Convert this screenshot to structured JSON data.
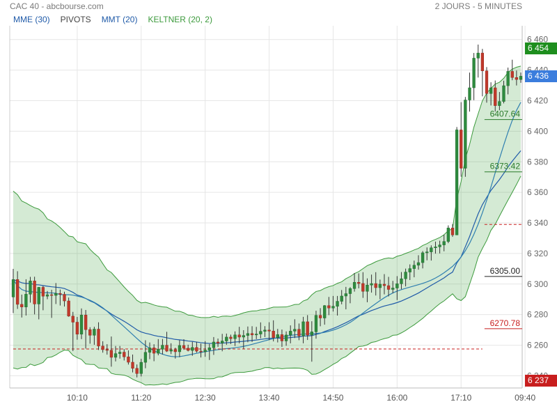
{
  "header": {
    "title": "CAC 40 - abcbourse.com",
    "period": "2 JOURS - 5 MINUTES"
  },
  "legend": [
    {
      "label": "MME (30)",
      "color": "#1f5aa8"
    },
    {
      "label": "PIVOTS",
      "color": "#444444"
    },
    {
      "label": "MMT (20)",
      "color": "#1f5aa8"
    },
    {
      "label": "KELTNER (20, 2)",
      "color": "#3c9a3c"
    }
  ],
  "price_badges": [
    {
      "value": "6 454",
      "price": 6454,
      "color": "#1e8e1e"
    },
    {
      "value": "6 436",
      "price": 6436,
      "color": "#3b7ddd"
    },
    {
      "value": "6 237",
      "price": 6237,
      "color": "#c81e1e"
    }
  ],
  "chart_data": {
    "type": "candlestick",
    "ylim": [
      6232,
      6469
    ],
    "yticks": [
      "6 240",
      "6 260",
      "6 280",
      "6 300",
      "6 320",
      "6 340",
      "6 360",
      "6 380",
      "6 400",
      "6 420",
      "6 440",
      "6 460"
    ],
    "ytick_values": [
      6240,
      6260,
      6280,
      6300,
      6320,
      6340,
      6360,
      6380,
      6400,
      6420,
      6440,
      6460
    ],
    "xticks": [
      "10:10",
      "11:20",
      "12:30",
      "13:40",
      "14:50",
      "16:00",
      "17:10",
      "09:40"
    ],
    "xtick_bars": [
      15,
      30,
      45,
      60,
      75,
      90,
      105,
      120
    ],
    "session_break_bar": 110,
    "pivot_levels": [
      {
        "label": "6407.64",
        "value": 6407.64,
        "color": "#2a7a2a",
        "style": "solid",
        "from_bar": 110
      },
      {
        "label": "6373.42",
        "value": 6373.42,
        "color": "#2a7a2a",
        "style": "solid",
        "from_bar": 110
      },
      {
        "label": "",
        "value": 6339,
        "color": "#c81e1e",
        "style": "dashed",
        "from_bar": 110
      },
      {
        "label": "6305.00",
        "value": 6305.0,
        "color": "#222222",
        "style": "solid",
        "from_bar": 110
      },
      {
        "label": "6270.78",
        "value": 6270.78,
        "color": "#c81e1e",
        "style": "solid",
        "from_bar": 110
      },
      {
        "label": "",
        "value": 6257.5,
        "color": "#c81e1e",
        "style": "dashed",
        "from_bar": 0,
        "to_bar": 110
      }
    ],
    "ohlc": [
      [
        6291.53,
        6309.95,
        6281.02,
        6302.97
      ],
      [
        6302.97,
        6308.39,
        6283.73,
        6286.73
      ],
      [
        6286.73,
        6293.09,
        6278.11,
        6285.0
      ],
      [
        6285.0,
        6303.13,
        6279.42,
        6293.37
      ],
      [
        6293.37,
        6304.7,
        6287.86,
        6302.04
      ],
      [
        6302.04,
        6304.79,
        6280.16,
        6286.95
      ],
      [
        6286.95,
        6298.1,
        6276.91,
        6297.88
      ],
      [
        6297.88,
        6298.91,
        6282.86,
        6292.07
      ],
      [
        6292.07,
        6295.45,
        6290.09,
        6293.02
      ],
      [
        6293.02,
        6296.25,
        6277.87,
        6292.6
      ],
      [
        6292.6,
        6300.66,
        6286.93,
        6293.88
      ],
      [
        6293.88,
        6296.42,
        6285.96,
        6293.28
      ],
      [
        6293.28,
        6295.0,
        6285.29,
        6288.96
      ],
      [
        6288.96,
        6291.15,
        6278.61,
        6279.02
      ],
      [
        6279.02,
        6281.79,
        6256.14,
        6275.06
      ],
      [
        6275.06,
        6278.5,
        6263.6,
        6267.2
      ],
      [
        6267.2,
        6284.04,
        6263.97,
        6279.73
      ],
      [
        6279.73,
        6283.04,
        6257.78,
        6270.2
      ],
      [
        6270.2,
        6271.76,
        6260.96,
        6266.49
      ],
      [
        6266.49,
        6272.07,
        6260.27,
        6270.52
      ],
      [
        6270.52,
        6274.99,
        6256.87,
        6259.41
      ],
      [
        6259.41,
        6262.58,
        6255.12,
        6257.09
      ],
      [
        6257.09,
        6260.64,
        6253.82,
        6256.67
      ],
      [
        6256.67,
        6265.68,
        6245.95,
        6252.07
      ],
      [
        6252.07,
        6259.47,
        6249.39,
        6254.5
      ],
      [
        6254.5,
        6259.47,
        6251.21,
        6255.45
      ],
      [
        6255.45,
        6257.47,
        6250.0,
        6252.38
      ],
      [
        6252.38,
        6256.59,
        6247.33,
        6248.86
      ],
      [
        6248.86,
        6253.88,
        6242.2,
        6244.85
      ],
      [
        6244.85,
        6247.39,
        6238.92,
        6241.45
      ],
      [
        6241.45,
        6251.08,
        6239.55,
        6248.8
      ],
      [
        6248.8,
        6263.22,
        6244.91,
        6255.32
      ],
      [
        6255.32,
        6261.78,
        6250.85,
        6258.25
      ],
      [
        6258.25,
        6260.61,
        6249.52,
        6254.74
      ],
      [
        6254.74,
        6263.97,
        6253.38,
        6257.39
      ],
      [
        6257.39,
        6264.08,
        6253.89,
        6259.98
      ],
      [
        6259.98,
        6268.76,
        6255.55,
        6256.12
      ],
      [
        6256.12,
        6261.25,
        6254.2,
        6257.03
      ],
      [
        6257.03,
        6258.32,
        6251.24,
        6255.72
      ],
      [
        6255.72,
        6263.25,
        6252.15,
        6259.8
      ],
      [
        6259.8,
        6263.91,
        6256.99,
        6258.04
      ],
      [
        6258.04,
        6260.31,
        6255.94,
        6256.57
      ],
      [
        6256.57,
        6262.21,
        6253.08,
        6258.54
      ],
      [
        6258.54,
        6262.23,
        6255.13,
        6256.11
      ],
      [
        6256.11,
        6261.06,
        6251.96,
        6255.73
      ],
      [
        6255.73,
        6262.66,
        6252.41,
        6256.79
      ],
      [
        6256.79,
        6260.83,
        6250.33,
        6258.33
      ],
      [
        6258.33,
        6265.32,
        6253.66,
        6262.09
      ],
      [
        6262.09,
        6264.36,
        6258.88,
        6261.38
      ],
      [
        6261.38,
        6267.42,
        6256.02,
        6262.75
      ],
      [
        6262.75,
        6267.59,
        6260.22,
        6265.31
      ],
      [
        6265.31,
        6266.91,
        6260.76,
        6264.28
      ],
      [
        6264.28,
        6269.04,
        6259.48,
        6266.74
      ],
      [
        6266.74,
        6272.02,
        6261.19,
        6265.3
      ],
      [
        6265.3,
        6269.84,
        6257.73,
        6266.37
      ],
      [
        6266.37,
        6272.22,
        6261.93,
        6267.64
      ],
      [
        6267.64,
        6272.41,
        6262.16,
        6266.72
      ],
      [
        6266.72,
        6271.99,
        6263.98,
        6267.29
      ],
      [
        6267.29,
        6274.92,
        6264.51,
        6269.07
      ],
      [
        6269.07,
        6272.46,
        6265.34,
        6269.91
      ],
      [
        6269.91,
        6275.02,
        6263.37,
        6269.24
      ],
      [
        6269.24,
        6276.27,
        6262.48,
        6264.92
      ],
      [
        6264.92,
        6270.66,
        6261.82,
        6266.93
      ],
      [
        6266.93,
        6270.24,
        6258.86,
        6262.79
      ],
      [
        6262.79,
        6269.03,
        6259.62,
        6266.67
      ],
      [
        6266.67,
        6272.96,
        6261.21,
        6269.2
      ],
      [
        6269.2,
        6276.97,
        6264.68,
        6270.42
      ],
      [
        6270.42,
        6274.19,
        6263.26,
        6266.08
      ],
      [
        6266.08,
        6278.56,
        6261.23,
        6275.33
      ],
      [
        6275.33,
        6279.67,
        6263.42,
        6266.63
      ],
      [
        6266.63,
        6275.67,
        6249.22,
        6268.73
      ],
      [
        6268.73,
        6282.55,
        6264.26,
        6279.53
      ],
      [
        6279.53,
        6284.24,
        6272.39,
        6277.79
      ],
      [
        6277.79,
        6286.25,
        6273.43,
        6285.89
      ],
      [
        6285.89,
        6291.58,
        6279.66,
        6284.32
      ],
      [
        6284.32,
        6292.22,
        6282.02,
        6285.47
      ],
      [
        6285.47,
        6292.21,
        6279.39,
        6288.72
      ],
      [
        6288.72,
        6296.1,
        6286.75,
        6292.17
      ],
      [
        6292.17,
        6298.16,
        6283.46,
        6293.74
      ],
      [
        6293.74,
        6298.01,
        6287.44,
        6297.04
      ],
      [
        6297.04,
        6307.23,
        6295.05,
        6301.16
      ],
      [
        6301.16,
        6307.01,
        6297.19,
        6300.38
      ],
      [
        6300.38,
        6307.76,
        6290.97,
        6295.24
      ],
      [
        6295.24,
        6303.71,
        6288.11,
        6299.34
      ],
      [
        6299.34,
        6306.19,
        6294.4,
        6300.32
      ],
      [
        6300.32,
        6307.76,
        6292.52,
        6297.63
      ],
      [
        6297.63,
        6302.94,
        6290.05,
        6299.91
      ],
      [
        6299.91,
        6306.51,
        6293.26,
        6298.97
      ],
      [
        6298.97,
        6304.71,
        6291.9,
        6296.49
      ],
      [
        6296.49,
        6302.07,
        6293.95,
        6297.39
      ],
      [
        6297.39,
        6305.19,
        6289.54,
        6300.19
      ],
      [
        6300.19,
        6307.86,
        6296.66,
        6303.47
      ],
      [
        6303.47,
        6310.11,
        6298.46,
        6307.85
      ],
      [
        6307.85,
        6312.86,
        6302.63,
        6310.12
      ],
      [
        6310.12,
        6315.36,
        6304.43,
        6312.32
      ],
      [
        6312.32,
        6318.86,
        6309.43,
        6314.03
      ],
      [
        6314.03,
        6321.59,
        6310.25,
        6320.46
      ],
      [
        6320.46,
        6323.97,
        6315.53,
        6321.05
      ],
      [
        6321.05,
        6325.32,
        6315.38,
        6323.73
      ],
      [
        6323.73,
        6327.78,
        6319.92,
        6324.34
      ],
      [
        6324.34,
        6328.37,
        6320.05,
        6325.61
      ],
      [
        6325.61,
        6332.25,
        6321.43,
        6327.86
      ],
      [
        6327.86,
        6338.4,
        6326.76,
        6336.72
      ],
      [
        6336.72,
        6339.24,
        6330.88,
        6332.13
      ],
      [
        6332.13,
        6402.73,
        6332.09,
        6400.88
      ],
      [
        6400.88,
        6419.02,
        6370.24,
        6375.78
      ],
      [
        6375.78,
        6422.42,
        6370.19,
        6420.44
      ],
      [
        6420.44,
        6438.37,
        6412.84,
        6428.43
      ],
      [
        6428.43,
        6451.2,
        6420.31,
        6447.82
      ],
      [
        6447.82,
        6456.69,
        6435.13,
        6451.17
      ],
      [
        6451.17,
        6453.87,
        6422.83,
        6439.5
      ],
      [
        6439.5,
        6441.97,
        6418.69,
        6424.67
      ],
      [
        6424.67,
        6432.02,
        6416.86,
        6428.42
      ],
      [
        6428.42,
        6433.19,
        6412.86,
        6416.75
      ],
      [
        6416.75,
        6425.67,
        6413.71,
        6419.49
      ],
      [
        6419.49,
        6433.06,
        6418.24,
        6429.79
      ],
      [
        6429.79,
        6441.64,
        6424.13,
        6439.17
      ],
      [
        6439.17,
        6446.79,
        6433.37,
        6435.15
      ],
      [
        6435.15,
        6439.74,
        6429.94,
        6433.85
      ],
      [
        6433.85,
        6438.4,
        6431.67,
        6436.0
      ]
    ]
  }
}
